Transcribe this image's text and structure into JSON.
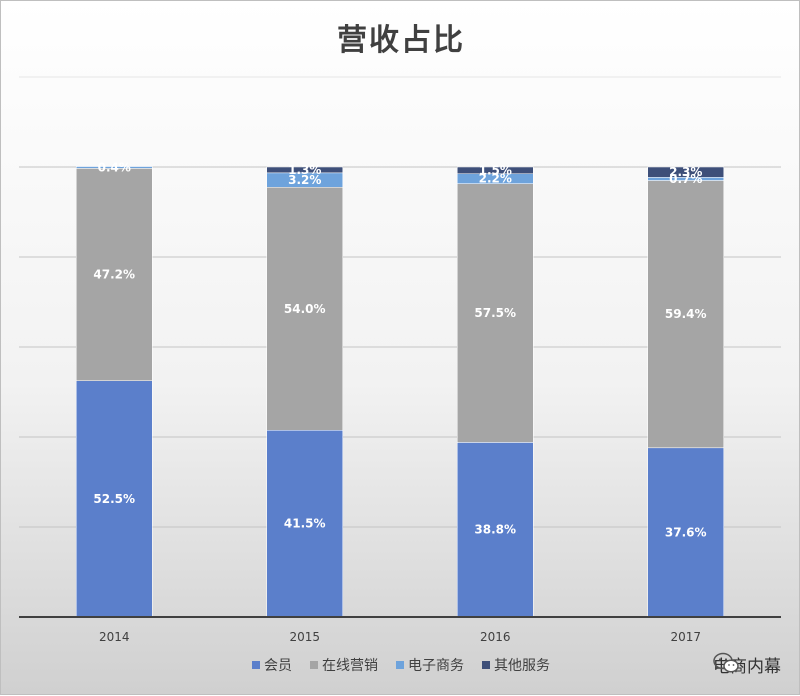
{
  "chart_data": {
    "type": "bar",
    "stacked": true,
    "title": "营收占比",
    "categories": [
      "2014",
      "2015",
      "2016",
      "2017"
    ],
    "ylim": [
      0,
      100
    ],
    "grid": true,
    "legend_position": "bottom",
    "series": [
      {
        "name": "会员",
        "color": "#5b7fcb",
        "values": [
          52.5,
          41.5,
          38.8,
          37.6
        ],
        "labels": [
          "52.5%",
          "41.5%",
          "38.8%",
          "37.6%"
        ]
      },
      {
        "name": "在线营销",
        "color": "#a5a5a5",
        "values": [
          47.2,
          54.0,
          57.5,
          59.4
        ],
        "labels": [
          "47.2%",
          "54.0%",
          "57.5%",
          "59.4%"
        ]
      },
      {
        "name": "电子商务",
        "color": "#6ea3dc",
        "values": [
          0.4,
          3.2,
          2.2,
          0.7
        ],
        "labels": [
          "0.4%",
          "3.2%",
          "2.2%",
          "0.7%"
        ]
      },
      {
        "name": "其他服务",
        "color": "#3e4f79",
        "values": [
          0.0,
          1.3,
          1.5,
          2.3
        ],
        "labels": [
          "",
          "1.3%",
          "1.5%",
          "2.3%"
        ]
      }
    ]
  },
  "watermark": {
    "text": "电商内幕",
    "icon": "wechat-icon"
  }
}
